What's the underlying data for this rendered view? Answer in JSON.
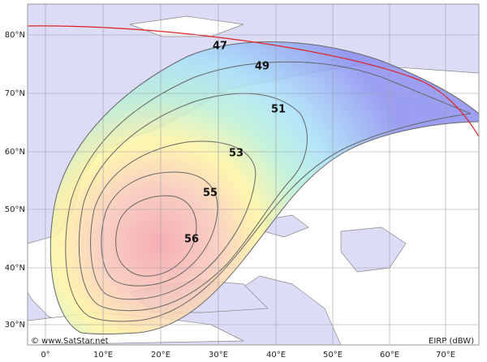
{
  "map": {
    "lat_labels": [
      "80°N",
      "70°N",
      "60°N",
      "50°N",
      "40°N",
      "30°N"
    ],
    "lon_labels": [
      "0°",
      "10°E",
      "20°E",
      "30°E",
      "40°E",
      "50°E",
      "60°E",
      "70°E"
    ],
    "contours": [
      47,
      49,
      51,
      53,
      55,
      56
    ],
    "credit": "© www.SatStar.net",
    "unit_label": "EIRP (dBW)"
  }
}
